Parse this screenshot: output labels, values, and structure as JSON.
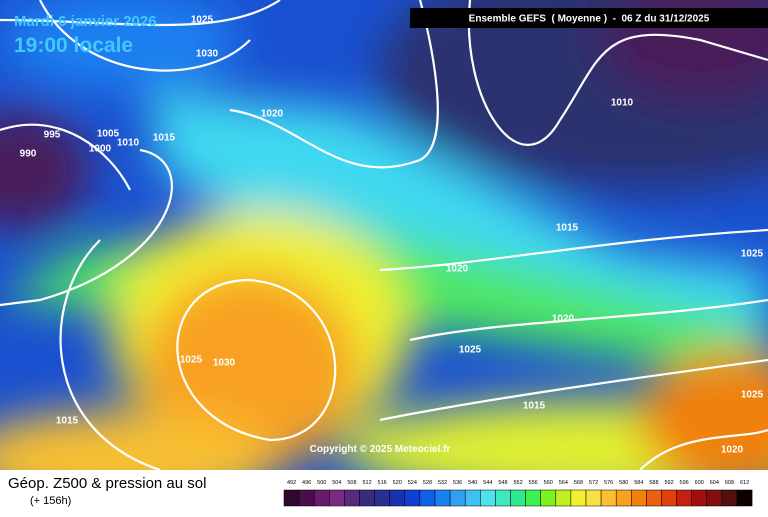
{
  "header": {
    "date": "Mardi 6 janvier 2026",
    "time": "19:00 locale",
    "model": "Ensemble GEFS  ( Moyenne )  -  06 Z du 31/12/2025"
  },
  "copyright": "Copyright © 2025 Meteociel.fr",
  "footer": {
    "title": "Géop. Z500 & pression au sol",
    "lead": "(+ 156h)"
  },
  "isobar_labels": [
    "1025",
    "1030",
    "995",
    "990",
    "1005",
    "1000",
    "1010",
    "1015",
    "1020",
    "1010",
    "1015",
    "1025",
    "1020",
    "1020",
    "1025",
    "1025",
    "1030",
    "1015",
    "1015",
    "1025",
    "1020"
  ],
  "scale": {
    "labels": [
      "492",
      "496",
      "500",
      "504",
      "508",
      "512",
      "516",
      "520",
      "524",
      "528",
      "532",
      "536",
      "540",
      "544",
      "548",
      "552",
      "556",
      "560",
      "564",
      "568",
      "572",
      "576",
      "580",
      "584",
      "588",
      "592",
      "596",
      "600",
      "604",
      "608",
      "612"
    ],
    "colors": [
      "#2d0a2d",
      "#4a0f4a",
      "#6a1a6a",
      "#7a2a80",
      "#5a2a80",
      "#3a2a80",
      "#2a3090",
      "#1a30b0",
      "#1040d0",
      "#1060e8",
      "#1a80f0",
      "#30a0f0",
      "#40c0f0",
      "#50e0f0",
      "#40e8c0",
      "#30e890",
      "#40f050",
      "#80f020",
      "#c0f020",
      "#f0f030",
      "#f8e040",
      "#f8c030",
      "#f8a020",
      "#f08010",
      "#e86010",
      "#e04010",
      "#c82010",
      "#a01010",
      "#801010",
      "#501010",
      "#100000"
    ]
  }
}
